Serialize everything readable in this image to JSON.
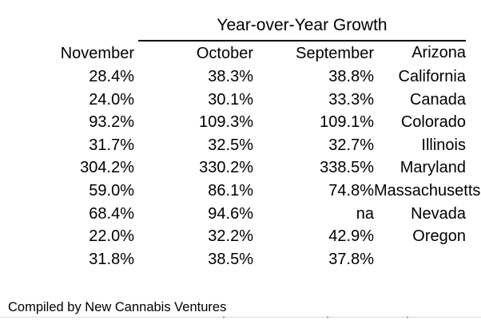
{
  "table": {
    "title": "Year-over-Year Growth",
    "columns": [
      "November",
      "October",
      "September"
    ],
    "rows": [
      {
        "label": "Arizona",
        "values": [
          "28.4%",
          "38.3%",
          "38.8%"
        ]
      },
      {
        "label": "California",
        "values": [
          "24.0%",
          "30.1%",
          "33.3%"
        ]
      },
      {
        "label": "Canada",
        "values": [
          "93.2%",
          "109.3%",
          "109.1%"
        ]
      },
      {
        "label": "Colorado",
        "values": [
          "31.7%",
          "32.5%",
          "32.7%"
        ]
      },
      {
        "label": "Illinois",
        "values": [
          "304.2%",
          "330.2%",
          "338.5%"
        ]
      },
      {
        "label": "Maryland",
        "values": [
          "59.0%",
          "86.1%",
          "74.8%"
        ]
      },
      {
        "label": "Massachusetts",
        "values": [
          "68.4%",
          "94.6%",
          "na"
        ]
      },
      {
        "label": "Nevada",
        "values": [
          "22.0%",
          "32.2%",
          "42.9%"
        ]
      },
      {
        "label": "Oregon",
        "values": [
          "31.8%",
          "38.5%",
          "37.8%"
        ]
      }
    ],
    "footer": "Compiled by New Cannabis Ventures"
  },
  "chart_data": {
    "type": "table",
    "title": "Year-over-Year Growth",
    "columns": [
      "November",
      "October",
      "September"
    ],
    "rows": [
      [
        "Arizona",
        28.4,
        38.3,
        38.8
      ],
      [
        "California",
        24.0,
        30.1,
        33.3
      ],
      [
        "Canada",
        93.2,
        109.3,
        109.1
      ],
      [
        "Colorado",
        31.7,
        32.5,
        32.7
      ],
      [
        "Illinois",
        304.2,
        330.2,
        338.5
      ],
      [
        "Maryland",
        59.0,
        86.1,
        74.8
      ],
      [
        "Massachusetts",
        68.4,
        94.6,
        null
      ],
      [
        "Nevada",
        22.0,
        32.2,
        42.9
      ],
      [
        "Oregon",
        31.8,
        38.5,
        37.8
      ]
    ],
    "units": "%",
    "source_note": "Compiled by New Cannabis Ventures"
  },
  "colors": {
    "text": "#000000",
    "rule": "#000000",
    "background": "#ffffff",
    "gridline": "#d9d9d9"
  }
}
